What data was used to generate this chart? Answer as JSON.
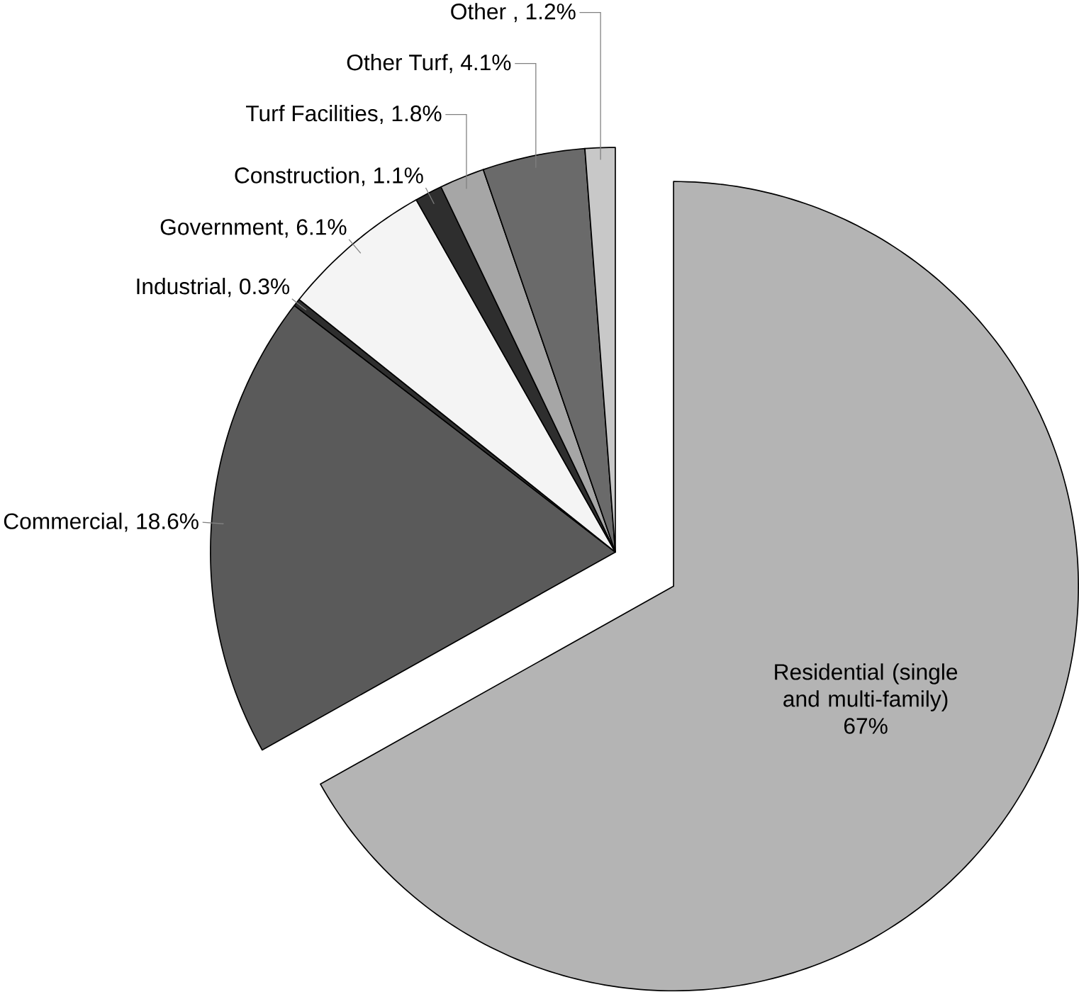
{
  "chart_data": {
    "type": "pie",
    "categories": [
      "Residential (single and multi-family)",
      "Commercial, 18.6%",
      "Industrial, 0.3%",
      "Government, 6.1%",
      "Construction, 1.1%",
      "Turf Facilities, 1.8%",
      "Other Turf, 4.1%",
      "Other , 1.2%"
    ],
    "values": [
      67,
      18.6,
      0.3,
      6.1,
      1.1,
      1.8,
      4.1,
      1.2
    ],
    "value_labels": [
      "67%",
      null,
      null,
      null,
      null,
      null,
      null,
      null
    ],
    "colors": [
      "#b4b4b4",
      "#5a5a5a",
      "#2e2e2e",
      "#f4f4f4",
      "#2e2e2e",
      "#a6a6a6",
      "#6a6a6a",
      "#c8c8c8"
    ]
  }
}
